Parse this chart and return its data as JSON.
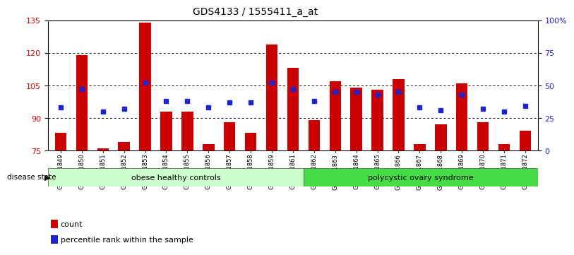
{
  "title": "GDS4133 / 1555411_a_at",
  "samples": [
    "GSM201849",
    "GSM201850",
    "GSM201851",
    "GSM201852",
    "GSM201853",
    "GSM201854",
    "GSM201855",
    "GSM201856",
    "GSM201857",
    "GSM201858",
    "GSM201859",
    "GSM201861",
    "GSM201862",
    "GSM201863",
    "GSM201864",
    "GSM201865",
    "GSM201866",
    "GSM201867",
    "GSM201868",
    "GSM201869",
    "GSM201870",
    "GSM201871",
    "GSM201872"
  ],
  "counts": [
    83,
    119,
    76,
    79,
    134,
    93,
    93,
    78,
    88,
    83,
    124,
    113,
    89,
    107,
    104,
    103,
    108,
    78,
    87,
    106,
    88,
    78,
    84
  ],
  "percentiles": [
    33,
    47,
    30,
    32,
    52,
    38,
    38,
    33,
    37,
    37,
    52,
    47,
    38,
    45,
    45,
    43,
    45,
    33,
    31,
    43,
    32,
    30,
    34
  ],
  "group1_label": "obese healthy controls",
  "group2_label": "polycystic ovary syndrome",
  "group1_count": 12,
  "ylim_left": [
    75,
    135
  ],
  "ylim_right": [
    0,
    100
  ],
  "yticks_left": [
    75,
    90,
    105,
    120,
    135
  ],
  "ytick_labels_left": [
    "75",
    "90",
    "105",
    "120",
    "135"
  ],
  "yticks_right": [
    0,
    25,
    50,
    75,
    100
  ],
  "ytick_labels_right": [
    "0",
    "25",
    "50",
    "75",
    "100%"
  ],
  "bar_color": "#CC0000",
  "dot_color": "#2222CC",
  "group1_bg": "#CCFFCC",
  "group2_bg": "#44DD44",
  "legend_count_label": "count",
  "legend_pct_label": "percentile rank within the sample"
}
